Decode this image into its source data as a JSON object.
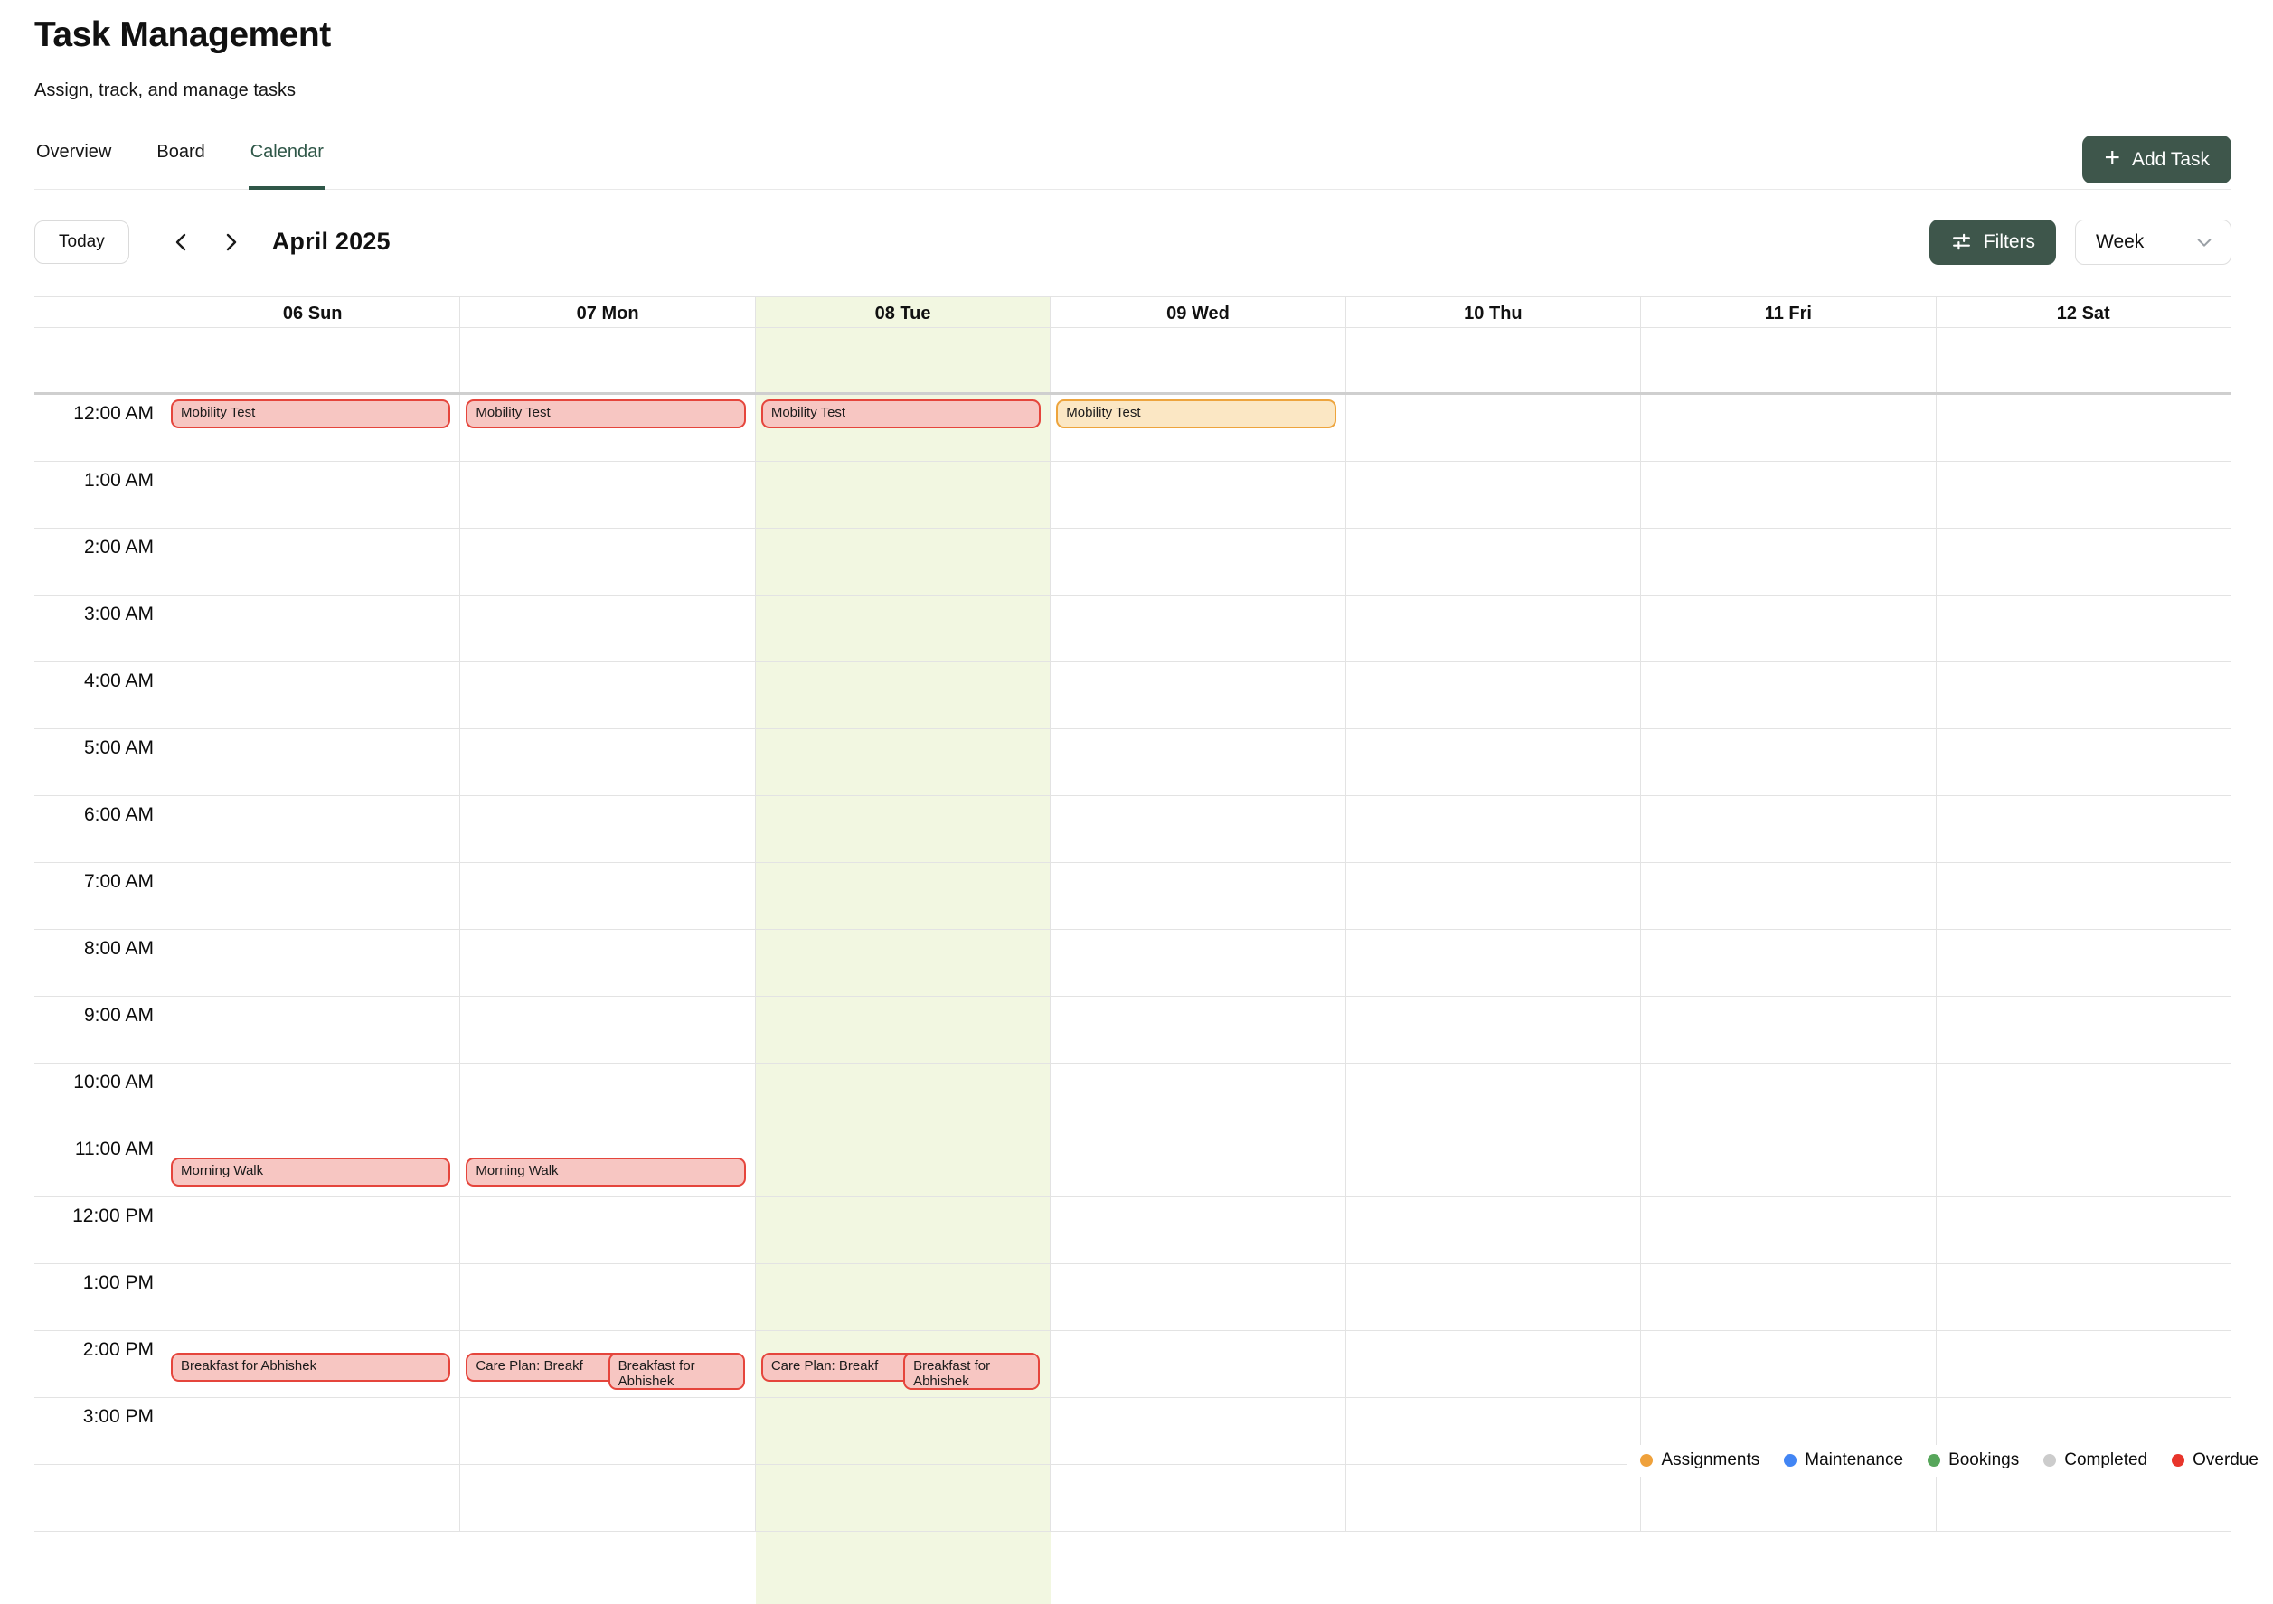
{
  "header": {
    "title": "Task Management",
    "subtitle": "Assign, track, and manage tasks",
    "tabs": [
      {
        "label": "Overview"
      },
      {
        "label": "Board"
      },
      {
        "label": "Calendar"
      }
    ],
    "active_tab_index": 2,
    "add_task_label": "Add Task"
  },
  "toolbar": {
    "today_label": "Today",
    "month_label": "April 2025",
    "filters_label": "Filters",
    "view_selected": "Week"
  },
  "calendar": {
    "days": [
      "06 Sun",
      "07 Mon",
      "08 Tue",
      "09 Wed",
      "10 Thu",
      "11 Fri",
      "12 Sat"
    ],
    "highlight_day_index": 2,
    "highlight_color": "#f2f7e1",
    "times": [
      "12:00 AM",
      "1:00 AM",
      "2:00 AM",
      "3:00 AM",
      "4:00 AM",
      "5:00 AM",
      "6:00 AM",
      "7:00 AM",
      "8:00 AM",
      "9:00 AM",
      "10:00 AM",
      "11:00 AM",
      "12:00 PM",
      "1:00 PM",
      "2:00 PM",
      "3:00 PM"
    ],
    "event_colors": {
      "overdue": {
        "bg": "#f7c6c2",
        "border": "#e5453c"
      },
      "assignment": {
        "bg": "#fbe7c4",
        "border": "#eda43d"
      }
    },
    "events": [
      {
        "day": 0,
        "label": "Mobility Test",
        "type": "overdue",
        "start_min": 0,
        "dur_min": 30
      },
      {
        "day": 1,
        "label": "Mobility Test",
        "type": "overdue",
        "start_min": 0,
        "dur_min": 30
      },
      {
        "day": 2,
        "label": "Mobility Test",
        "type": "overdue",
        "start_min": 0,
        "dur_min": 30
      },
      {
        "day": 3,
        "label": "Mobility Test",
        "type": "assignment",
        "start_min": 0,
        "dur_min": 30
      },
      {
        "day": 0,
        "label": "Morning Walk",
        "type": "overdue",
        "start_min": 680,
        "dur_min": 30
      },
      {
        "day": 1,
        "label": "Morning Walk",
        "type": "overdue",
        "start_min": 680,
        "dur_min": 30
      },
      {
        "day": 0,
        "label": "Breakfast for Abhishek",
        "type": "overdue",
        "start_min": 855,
        "dur_min": 30
      },
      {
        "day": 1,
        "label": "Care Plan: Breakf",
        "type": "overdue",
        "start_min": 855,
        "dur_min": 30,
        "left_pct": 0,
        "width_pct": 56
      },
      {
        "day": 1,
        "label": "Breakfast for Abhishek",
        "type": "overdue",
        "start_min": 855,
        "dur_min": 30,
        "left_pct": 50,
        "width_pct": 50,
        "lines": 2
      },
      {
        "day": 2,
        "label": "Care Plan: Breakf",
        "type": "overdue",
        "start_min": 855,
        "dur_min": 30,
        "left_pct": 0,
        "width_pct": 56
      },
      {
        "day": 2,
        "label": "Breakfast for Abhishek",
        "type": "overdue",
        "start_min": 855,
        "dur_min": 30,
        "left_pct": 50,
        "width_pct": 50,
        "lines": 2
      }
    ]
  },
  "legend": {
    "items": [
      {
        "label": "Assignments",
        "color": "#efa13b"
      },
      {
        "label": "Maintenance",
        "color": "#4285f4"
      },
      {
        "label": "Bookings",
        "color": "#57a65b"
      },
      {
        "label": "Completed",
        "color": "#cccccc"
      },
      {
        "label": "Overdue",
        "color": "#e8352b"
      }
    ]
  }
}
